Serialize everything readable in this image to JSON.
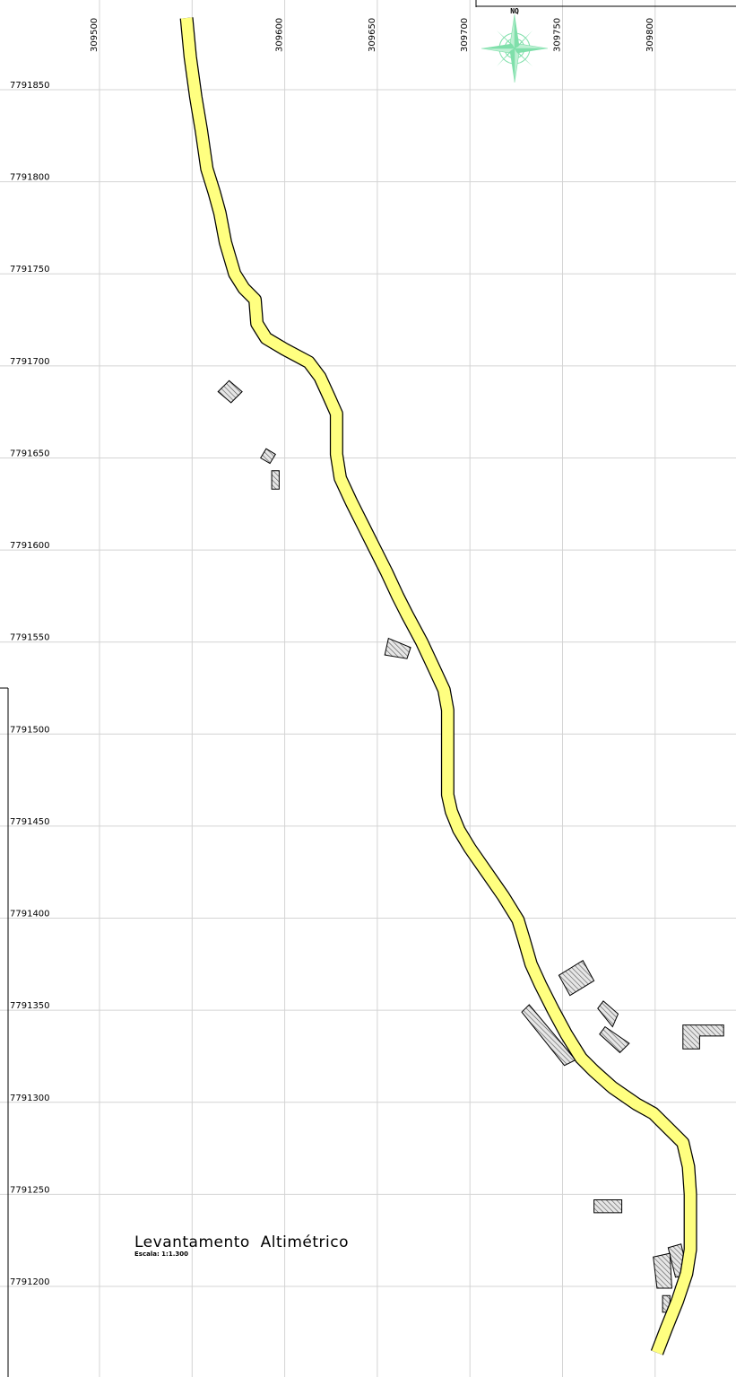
{
  "map": {
    "title": "Levantamento  Altimétrico",
    "scale_label": "Escala: 1:1.300",
    "north_label": "NQ",
    "colors": {
      "road_fill": "#ffff80",
      "road_outline": "#000000",
      "north_arrow": "#7fdfaa",
      "grid": "#d4d4d4"
    },
    "icons": [
      "north-arrow-icon",
      "compass-rose-icon"
    ],
    "easting_labels": [
      "309500",
      "309550",
      "309600",
      "309650",
      "309700",
      "309750",
      "309800"
    ],
    "northing_labels": [
      "7791850",
      "7791800",
      "7791750",
      "7791700",
      "7791650",
      "7791600",
      "7791550",
      "7791500",
      "7791450",
      "7791400",
      "7791350",
      "7791300",
      "7791250",
      "7791200"
    ],
    "road_centerline": [
      [
        309547,
        7791889
      ],
      [
        309549,
        7791868
      ],
      [
        309552,
        7791846
      ],
      [
        309555,
        7791828
      ],
      [
        309558,
        7791807
      ],
      [
        309562,
        7791794
      ],
      [
        309565,
        7791783
      ],
      [
        309568,
        7791767
      ],
      [
        309573,
        7791750
      ],
      [
        309578,
        7791742
      ],
      [
        309584,
        7791736
      ],
      [
        309585,
        7791723
      ],
      [
        309590,
        7791715
      ],
      [
        309600,
        7791709
      ],
      [
        309613,
        7791702
      ],
      [
        309619,
        7791694
      ],
      [
        309624,
        7791683
      ],
      [
        309628,
        7791674
      ],
      [
        309628,
        7791662
      ],
      [
        309628,
        7791652
      ],
      [
        309630,
        7791639
      ],
      [
        309636,
        7791626
      ],
      [
        309643,
        7791612
      ],
      [
        309649,
        7791600
      ],
      [
        309655,
        7791588
      ],
      [
        309661,
        7791575
      ],
      [
        309666,
        7791565
      ],
      [
        309674,
        7791550
      ],
      [
        309681,
        7791535
      ],
      [
        309686,
        7791524
      ],
      [
        309688,
        7791513
      ],
      [
        309688,
        7791497
      ],
      [
        309688,
        7791482
      ],
      [
        309688,
        7791467
      ],
      [
        309690,
        7791458
      ],
      [
        309694,
        7791448
      ],
      [
        309700,
        7791438
      ],
      [
        309709,
        7791425
      ],
      [
        309718,
        7791412
      ],
      [
        309726,
        7791399
      ],
      [
        309729,
        7791389
      ],
      [
        309733,
        7791375
      ],
      [
        309738,
        7791364
      ],
      [
        309745,
        7791350
      ],
      [
        309752,
        7791337
      ],
      [
        309760,
        7791324
      ],
      [
        309767,
        7791317
      ],
      [
        309777,
        7791308
      ],
      [
        309790,
        7791299
      ],
      [
        309799,
        7791294
      ],
      [
        309808,
        7791285
      ],
      [
        309815,
        7791278
      ],
      [
        309818,
        7791265
      ],
      [
        309819,
        7791250
      ],
      [
        309819,
        7791235
      ],
      [
        309819,
        7791220
      ],
      [
        309817,
        7791207
      ],
      [
        309812,
        7791192
      ],
      [
        309806,
        7791177
      ],
      [
        309801,
        7791164
      ]
    ],
    "buildings": [
      [
        [
          309564,
          7791686
        ],
        [
          309570,
          7791692
        ],
        [
          309577,
          7791686
        ],
        [
          309571,
          7791680
        ]
      ],
      [
        [
          309587,
          7791650
        ],
        [
          309590,
          7791655
        ],
        [
          309595,
          7791652
        ],
        [
          309592,
          7791647
        ]
      ],
      [
        [
          309593,
          7791643
        ],
        [
          309597,
          7791643
        ],
        [
          309597,
          7791633
        ],
        [
          309593,
          7791633
        ]
      ],
      [
        [
          309656,
          7791552
        ],
        [
          309668,
          7791547
        ],
        [
          309666,
          7791541
        ],
        [
          309654,
          7791543
        ]
      ],
      [
        [
          309748,
          7791369
        ],
        [
          309761,
          7791377
        ],
        [
          309767,
          7791366
        ],
        [
          309754,
          7791358
        ]
      ],
      [
        [
          309769,
          7791351
        ],
        [
          309772,
          7791355
        ],
        [
          309780,
          7791348
        ],
        [
          309777,
          7791341
        ]
      ],
      [
        [
          309773,
          7791341
        ],
        [
          309786,
          7791332
        ],
        [
          309781,
          7791327
        ],
        [
          309770,
          7791337
        ]
      ],
      [
        [
          309815,
          7791342
        ],
        [
          309837,
          7791342
        ],
        [
          309837,
          7791336
        ],
        [
          309824,
          7791336
        ],
        [
          309824,
          7791329
        ],
        [
          309815,
          7791329
        ]
      ],
      [
        [
          309728,
          7791349
        ],
        [
          309732,
          7791353
        ],
        [
          309757,
          7791323
        ],
        [
          309751,
          7791320
        ]
      ],
      [
        [
          309767,
          7791247
        ],
        [
          309782,
          7791247
        ],
        [
          309782,
          7791240
        ],
        [
          309767,
          7791240
        ]
      ],
      [
        [
          309807,
          7791221
        ],
        [
          309814,
          7791223
        ],
        [
          309818,
          7791206
        ],
        [
          309811,
          7791205
        ]
      ],
      [
        [
          309799,
          7791216
        ],
        [
          309808,
          7791218
        ],
        [
          309809,
          7791199
        ],
        [
          309801,
          7791199
        ]
      ],
      [
        [
          309804,
          7791195
        ],
        [
          309808,
          7791195
        ],
        [
          309808,
          7791186
        ],
        [
          309804,
          7791186
        ]
      ]
    ]
  }
}
